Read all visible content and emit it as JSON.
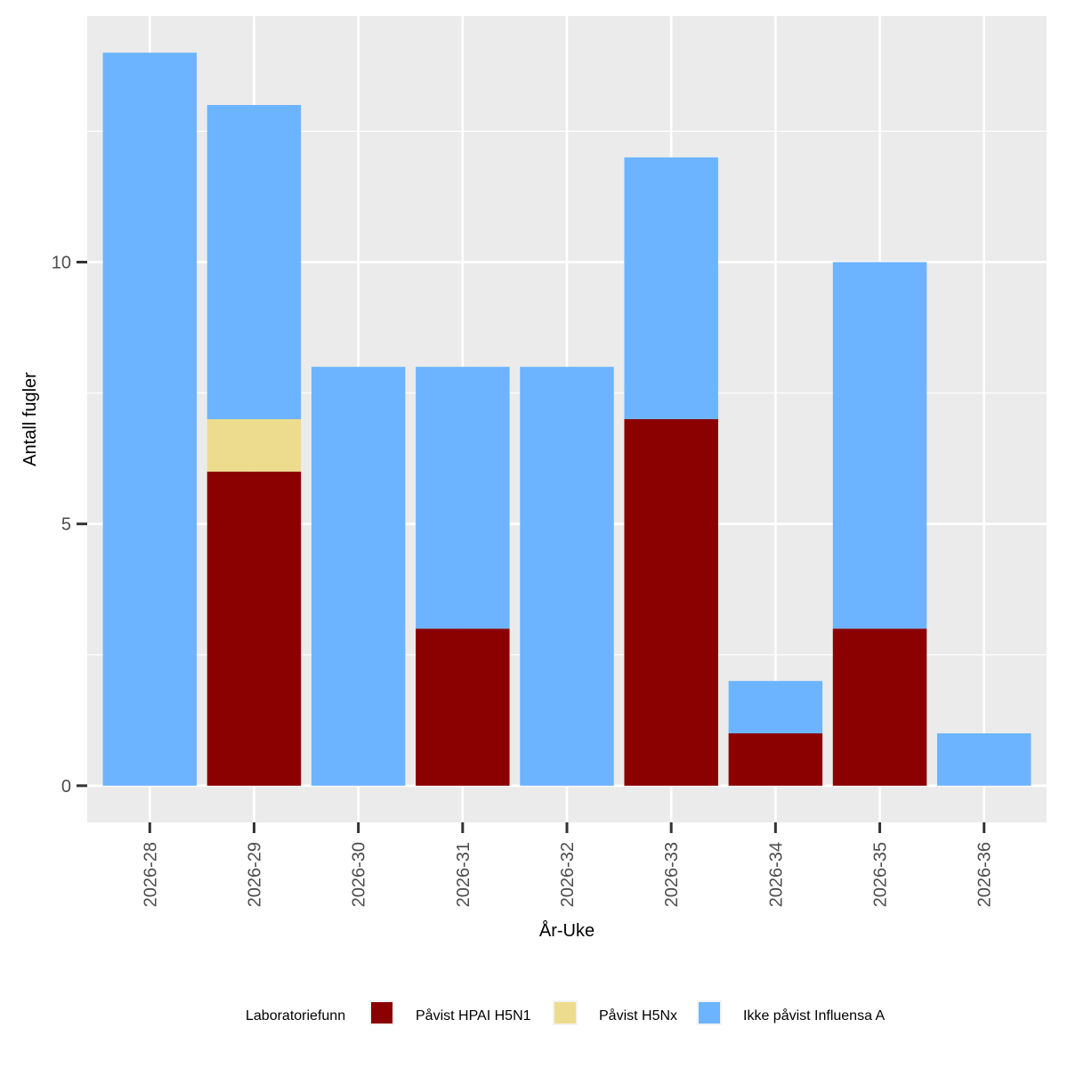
{
  "chart_data": {
    "type": "bar",
    "stacked": true,
    "xlabel": "År-Uke",
    "ylabel": "Antall fugler",
    "categories": [
      "2026-28",
      "2026-29",
      "2026-30",
      "2026-31",
      "2026-32",
      "2026-33",
      "2026-34",
      "2026-35",
      "2026-36"
    ],
    "series": [
      {
        "name": "Påvist HPAI H5N1",
        "color": "#8b0000",
        "values": [
          0,
          6,
          0,
          3,
          0,
          7,
          1,
          3,
          0
        ]
      },
      {
        "name": "Påvist H5Nx",
        "color": "#eedc8e",
        "values": [
          0,
          1,
          0,
          0,
          0,
          0,
          0,
          0,
          0
        ]
      },
      {
        "name": "Ikke påvist Influensa A",
        "color": "#6cb4ff",
        "values": [
          14,
          6,
          8,
          5,
          8,
          5,
          1,
          7,
          1
        ]
      }
    ],
    "ylim": [
      -0.7,
      14.7
    ],
    "yticks": [
      0,
      5,
      10
    ],
    "grid": true,
    "legend": {
      "title": "Laboratoriefunn",
      "position": "bottom"
    }
  }
}
